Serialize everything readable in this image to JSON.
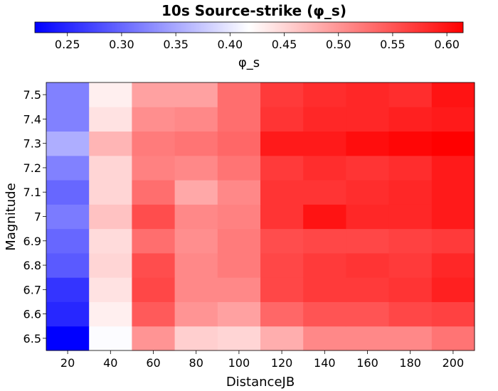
{
  "chart_data": {
    "type": "heatmap",
    "title": "10s Source-strike (φ_s)",
    "xlabel": "DistanceJB",
    "ylabel": "Magnitude",
    "x": [
      20,
      40,
      60,
      80,
      100,
      120,
      140,
      160,
      180,
      200
    ],
    "y": [
      6.5,
      6.6,
      6.7,
      6.8,
      6.9,
      7,
      7.1,
      7.2,
      7.3,
      7.4,
      7.5
    ],
    "x_tick_labels": [
      "20",
      "40",
      "60",
      "80",
      "100",
      "120",
      "140",
      "160",
      "180",
      "200"
    ],
    "y_tick_labels": [
      "6.5",
      "6.6",
      "6.7",
      "6.8",
      "6.9",
      "7",
      "7.1",
      "7.2",
      "7.3",
      "7.4",
      "7.5"
    ],
    "values": [
      [
        0.22,
        0.415,
        0.5,
        0.455,
        0.45,
        0.48,
        0.51,
        0.51,
        0.51,
        0.525
      ],
      [
        0.25,
        0.43,
        0.545,
        0.5,
        0.49,
        0.535,
        0.55,
        0.55,
        0.56,
        0.565
      ],
      [
        0.26,
        0.44,
        0.56,
        0.51,
        0.51,
        0.56,
        0.57,
        0.57,
        0.575,
        0.59
      ],
      [
        0.29,
        0.45,
        0.555,
        0.51,
        0.52,
        0.56,
        0.57,
        0.575,
        0.57,
        0.585
      ],
      [
        0.3,
        0.445,
        0.53,
        0.505,
        0.52,
        0.555,
        0.56,
        0.56,
        0.565,
        0.57
      ],
      [
        0.315,
        0.465,
        0.555,
        0.51,
        0.515,
        0.575,
        0.6,
        0.585,
        0.585,
        0.595
      ],
      [
        0.3,
        0.45,
        0.53,
        0.485,
        0.51,
        0.575,
        0.575,
        0.58,
        0.585,
        0.595
      ],
      [
        0.32,
        0.45,
        0.515,
        0.51,
        0.525,
        0.57,
        0.58,
        0.575,
        0.58,
        0.595
      ],
      [
        0.355,
        0.475,
        0.52,
        0.525,
        0.535,
        0.595,
        0.595,
        0.605,
        0.61,
        0.615
      ],
      [
        0.32,
        0.44,
        0.505,
        0.51,
        0.53,
        0.575,
        0.585,
        0.585,
        0.59,
        0.595
      ],
      [
        0.32,
        0.43,
        0.49,
        0.49,
        0.53,
        0.57,
        0.58,
        0.585,
        0.58,
        0.6
      ]
    ],
    "colorbar": {
      "label": "φ_s",
      "range": [
        0.22,
        0.615
      ],
      "ticks": [
        0.25,
        0.3,
        0.35,
        0.4,
        0.45,
        0.5,
        0.55,
        0.6
      ],
      "tick_labels": [
        "0.25",
        "0.30",
        "0.35",
        "0.40",
        "0.45",
        "0.50",
        "0.55",
        "0.60"
      ],
      "colormap": "bwr",
      "low_color": "#0000ff",
      "mid_color": "#ffffff",
      "high_color": "#ff0000",
      "mid_value": 0.4175,
      "placement": "top"
    }
  }
}
